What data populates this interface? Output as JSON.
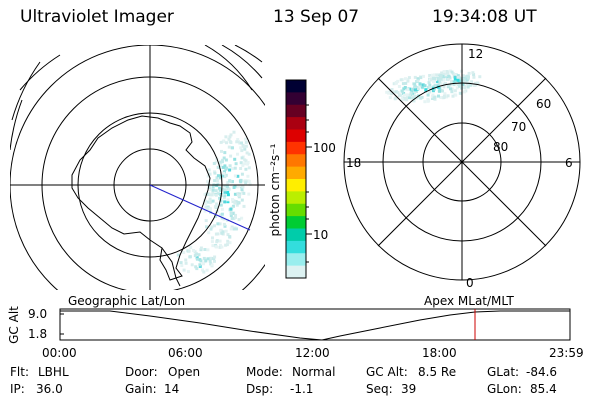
{
  "header": {
    "instrument": "Ultraviolet Imager",
    "date": "13 Sep 07",
    "time": "19:34:08 UT"
  },
  "left_panel": {
    "label": "Geographic Lat/Lon"
  },
  "right_panel": {
    "label": "Apex MLat/MLT",
    "mlt_labels": {
      "top": "12",
      "left": "18",
      "right": "6",
      "bottom": "0"
    },
    "lat_labels": [
      "60",
      "70",
      "80"
    ]
  },
  "colorbar": {
    "unit_label": "photon cm⁻²s⁻¹",
    "ticks": [
      "100",
      "10"
    ],
    "colors": [
      "#000033",
      "#330033",
      "#660022",
      "#aa0011",
      "#dd0000",
      "#ff3300",
      "#ff7700",
      "#ffaa00",
      "#ffee00",
      "#bbee00",
      "#66dd00",
      "#00cc33",
      "#00ccaa",
      "#33dddd",
      "#99eeee",
      "#ddf2f2"
    ]
  },
  "timeline": {
    "y_axis_label": "GC Alt",
    "y_ticks": [
      "9.0",
      "1.8"
    ],
    "x_ticks": [
      "00:00",
      "06:00",
      "12:00",
      "18:00",
      "23:59"
    ],
    "marker_color": "#cc0000"
  },
  "footer": {
    "row1": [
      {
        "k": "Flt:",
        "v": "LBHL"
      },
      {
        "k": "Door:",
        "v": "Open"
      },
      {
        "k": "Mode:",
        "v": "Normal"
      },
      {
        "k": "GC Alt:",
        "v": "8.5 Re"
      },
      {
        "k": "GLat:",
        "v": "-84.6"
      }
    ],
    "row2": [
      {
        "k": "IP:",
        "v": "36.0"
      },
      {
        "k": "Gain:",
        "v": "14"
      },
      {
        "k": "Dsp:",
        "v": "-1.1"
      },
      {
        "k": "Seq:",
        "v": "39"
      },
      {
        "k": "GLon:",
        "v": "85.4"
      }
    ]
  }
}
